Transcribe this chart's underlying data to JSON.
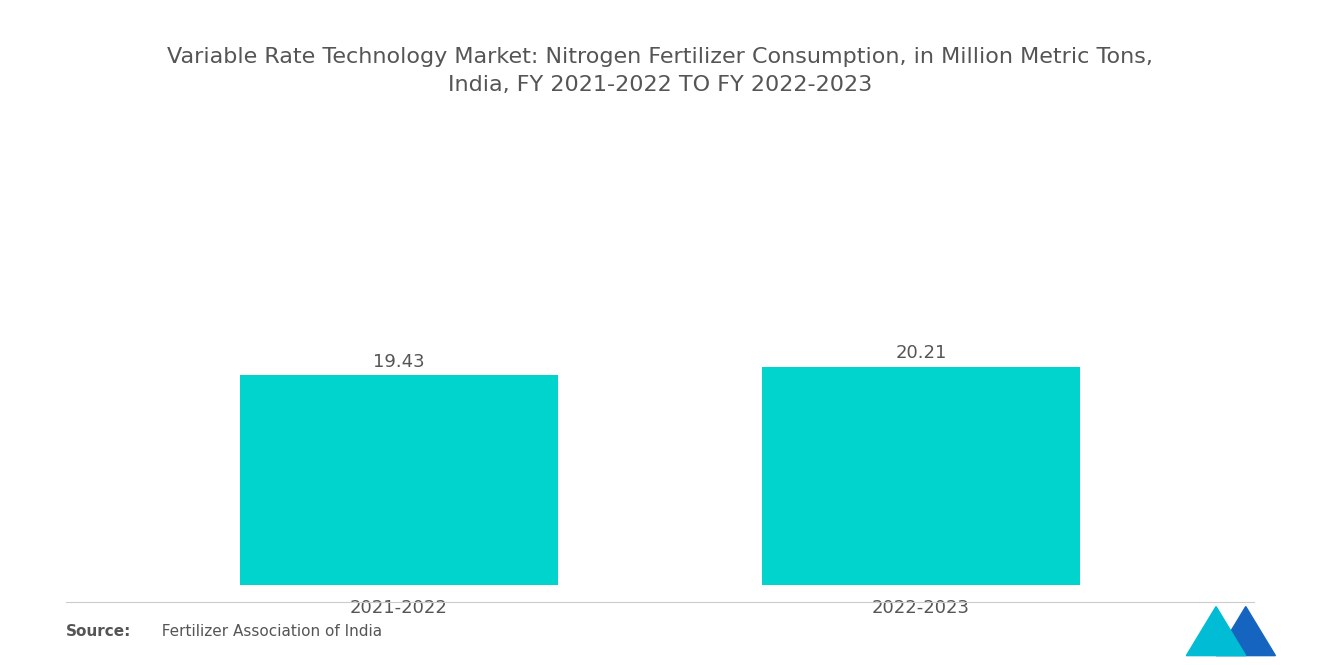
{
  "title": "Variable Rate Technology Market: Nitrogen Fertilizer Consumption, in Million Metric Tons,\nIndia, FY 2021-2022 TO FY 2022-2023",
  "categories": [
    "2021-2022",
    "2022-2023"
  ],
  "values": [
    19.43,
    20.21
  ],
  "bar_color": "#00D4CC",
  "title_fontsize": 16,
  "label_fontsize": 13,
  "value_fontsize": 13,
  "source_bold": "Source:",
  "source_normal": "  Fertilizer Association of India",
  "background_color": "#ffffff",
  "text_color": "#555555",
  "bar_width": 0.28,
  "x_positions": [
    0.27,
    0.73
  ],
  "xlim": [
    0,
    1
  ],
  "ylim": [
    0,
    32
  ],
  "logo_color1": "#00BCD4",
  "logo_color2": "#1565C0"
}
